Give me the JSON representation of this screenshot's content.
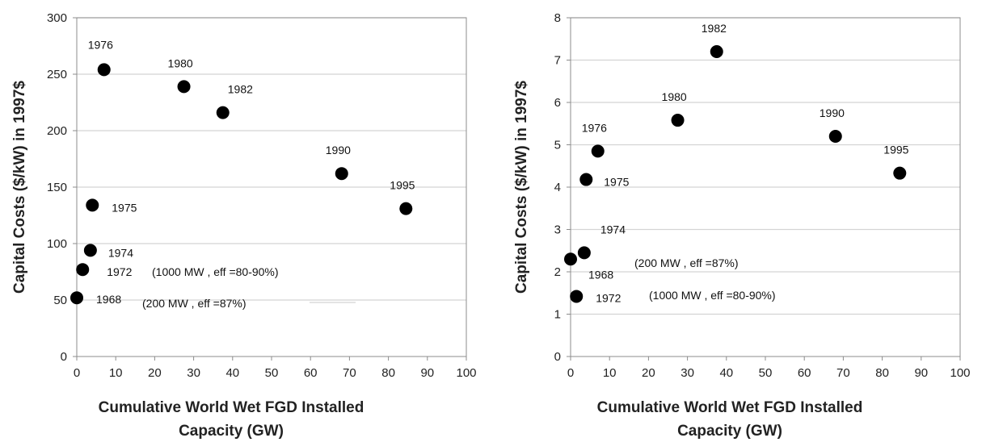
{
  "chart_data": [
    {
      "type": "scatter",
      "title": "",
      "xlabel": [
        "Cumulative World Wet FGD Installed",
        "Capacity (GW)"
      ],
      "ylabel": "Capital Costs ($/kW) in 1997$",
      "xlim": [
        0,
        100
      ],
      "ylim": [
        0,
        300
      ],
      "xticks": [
        0,
        10,
        20,
        30,
        40,
        50,
        60,
        70,
        80,
        90,
        100
      ],
      "yticks": [
        0,
        50,
        100,
        150,
        200,
        250,
        300
      ],
      "grid": "horizontal",
      "points": [
        {
          "label": "1968",
          "x": 0,
          "y": 52
        },
        {
          "label": "1972",
          "x": 1.5,
          "y": 77
        },
        {
          "label": "1974",
          "x": 3.5,
          "y": 94
        },
        {
          "label": "1975",
          "x": 4,
          "y": 134
        },
        {
          "label": "1976",
          "x": 7,
          "y": 254
        },
        {
          "label": "1980",
          "x": 27.5,
          "y": 239
        },
        {
          "label": "1982",
          "x": 37.5,
          "y": 216
        },
        {
          "label": "1990",
          "x": 68,
          "y": 162
        },
        {
          "label": "1995",
          "x": 84.5,
          "y": 131
        }
      ],
      "annotations": [
        "(1000 MW , eff =80-90%)",
        "(200 MW , eff =87%)"
      ]
    },
    {
      "type": "scatter",
      "title": "",
      "xlabel": [
        "Cumulative World Wet FGD Installed",
        "Capacity (GW)"
      ],
      "ylabel": "Capital Costs ($/kW) in 1997$",
      "xlim": [
        0,
        100
      ],
      "ylim": [
        0,
        8
      ],
      "xticks": [
        0,
        10,
        20,
        30,
        40,
        50,
        60,
        70,
        80,
        90,
        100
      ],
      "yticks": [
        0,
        1,
        2,
        3,
        4,
        5,
        6,
        7,
        8
      ],
      "grid": "horizontal",
      "points": [
        {
          "label": "1968",
          "x": 0,
          "y": 2.3
        },
        {
          "label": "1972",
          "x": 1.5,
          "y": 1.42
        },
        {
          "label": "1974",
          "x": 3.5,
          "y": 2.45
        },
        {
          "label": "1975",
          "x": 4,
          "y": 4.18
        },
        {
          "label": "1976",
          "x": 7,
          "y": 4.85
        },
        {
          "label": "1980",
          "x": 27.5,
          "y": 5.58
        },
        {
          "label": "1982",
          "x": 37.5,
          "y": 7.2
        },
        {
          "label": "1990",
          "x": 68,
          "y": 5.2
        },
        {
          "label": "1995",
          "x": 84.5,
          "y": 4.33
        }
      ],
      "annotations": [
        "(200 MW , eff =87%)",
        "(1000 MW , eff =80-90%)"
      ]
    }
  ]
}
